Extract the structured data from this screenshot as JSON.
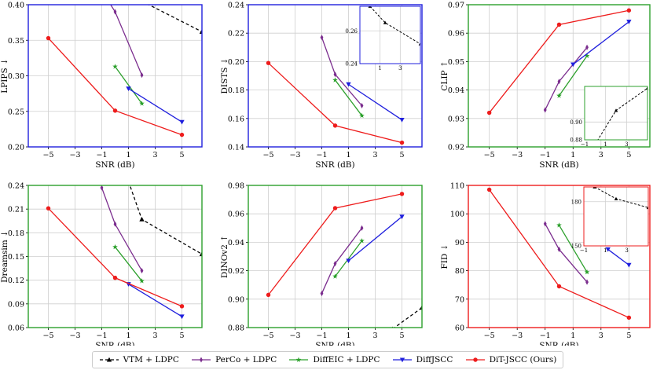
{
  "colors": {
    "VTM + LDPC": "#000000",
    "PerCo + LDPC": "#7b2d8e",
    "DiffEIC + LDPC": "#2ca02c",
    "DiffJSCC": "#1f1fdd",
    "DiT-JSCC (Ours)": "#ee1c1c"
  },
  "legend": [
    {
      "name": "VTM + LDPC",
      "marker": "triangle-up",
      "dashed": true
    },
    {
      "name": "PerCo + LDPC",
      "marker": "diamond",
      "dashed": false
    },
    {
      "name": "DiffEIC + LDPC",
      "marker": "star",
      "dashed": false
    },
    {
      "name": "DiffJSCC",
      "marker": "triangle-down",
      "dashed": false
    },
    {
      "name": "DiT-JSCC (Ours)",
      "marker": "circle",
      "dashed": false
    }
  ],
  "chart_data": [
    {
      "type": "line",
      "id": "lpips",
      "ylabel": "LPIPS ↓",
      "xlabel": "SNR (dB)",
      "frame_color": "#1f1fdd",
      "xlim": [
        -6.5,
        6.5
      ],
      "ylim": [
        0.2,
        0.4
      ],
      "xticks": [
        -5,
        -3,
        -1,
        1,
        3,
        5
      ],
      "xtick_labels": [
        "−5",
        "−3",
        "−1",
        "1",
        "3",
        "5"
      ],
      "yticks": [
        0.2,
        0.25,
        0.3,
        0.35,
        0.4
      ],
      "ytick_labels": [
        "0.20",
        "0.25",
        "0.30",
        "0.35",
        "0.40"
      ],
      "series": [
        {
          "name": "VTM + LDPC",
          "x": [
            2,
            6.5
          ],
          "y": [
            0.405,
            0.362
          ]
        },
        {
          "name": "PerCo + LDPC",
          "x": [
            -1,
            0,
            2
          ],
          "y": [
            0.42,
            0.39,
            0.301
          ]
        },
        {
          "name": "DiffEIC + LDPC",
          "x": [
            0,
            2
          ],
          "y": [
            0.313,
            0.261
          ]
        },
        {
          "name": "DiffJSCC",
          "x": [
            1,
            5
          ],
          "y": [
            0.282,
            0.235
          ]
        },
        {
          "name": "DiT-JSCC (Ours)",
          "x": [
            -5,
            0,
            5
          ],
          "y": [
            0.353,
            0.251,
            0.217
          ]
        }
      ]
    },
    {
      "type": "line",
      "id": "dists",
      "ylabel": "DISTS ↓",
      "xlabel": "SNR (dB)",
      "frame_color": "#1f1fdd",
      "xlim": [
        -6.5,
        6.5
      ],
      "ylim": [
        0.14,
        0.24
      ],
      "xticks": [
        -5,
        -3,
        -1,
        1,
        3,
        5
      ],
      "xtick_labels": [
        "−5",
        "−3",
        "−1",
        "1",
        "3",
        "5"
      ],
      "yticks": [
        0.14,
        0.16,
        0.18,
        0.2,
        0.22,
        0.24
      ],
      "ytick_labels": [
        "0.14",
        "0.16",
        "0.18",
        "0.20",
        "0.22",
        "0.24"
      ],
      "series": [
        {
          "name": "PerCo + LDPC",
          "x": [
            -1,
            0,
            2
          ],
          "y": [
            0.217,
            0.191,
            0.169
          ]
        },
        {
          "name": "DiffEIC + LDPC",
          "x": [
            0,
            2
          ],
          "y": [
            0.187,
            0.162
          ]
        },
        {
          "name": "DiffJSCC",
          "x": [
            1,
            5
          ],
          "y": [
            0.184,
            0.159
          ]
        },
        {
          "name": "DiT-JSCC (Ours)",
          "x": [
            -5,
            0,
            5
          ],
          "y": [
            0.199,
            0.155,
            0.143
          ]
        }
      ],
      "inset": {
        "xlim": [
          -1,
          5
        ],
        "ylim": [
          0.24,
          0.275
        ],
        "xticks": [
          1,
          3
        ],
        "xtick_labels": [
          "1",
          "3"
        ],
        "yticks": [
          0.24,
          0.26
        ],
        "ytick_labels": [
          "0.24",
          "0.26"
        ],
        "series": [
          {
            "name": "VTM + LDPC",
            "x": [
              0,
              1.5,
              5
            ],
            "y": [
              0.275,
              0.265,
              0.252
            ]
          }
        ]
      }
    },
    {
      "type": "line",
      "id": "clip",
      "ylabel": "CLIP ↑",
      "xlabel": "SNR (dB)",
      "frame_color": "#2ca02c",
      "xlim": [
        -6.5,
        6.5
      ],
      "ylim": [
        0.92,
        0.97
      ],
      "xticks": [
        -5,
        -3,
        -1,
        1,
        3,
        5
      ],
      "xtick_labels": [
        "−5",
        "−3",
        "−1",
        "1",
        "3",
        "5"
      ],
      "yticks": [
        0.92,
        0.93,
        0.94,
        0.95,
        0.96,
        0.97
      ],
      "ytick_labels": [
        "0.92",
        "0.93",
        "0.94",
        "0.95",
        "0.96",
        "0.97"
      ],
      "series": [
        {
          "name": "PerCo + LDPC",
          "x": [
            -1,
            0,
            2
          ],
          "y": [
            0.933,
            0.943,
            0.955
          ]
        },
        {
          "name": "DiffEIC + LDPC",
          "x": [
            0,
            2
          ],
          "y": [
            0.938,
            0.952
          ]
        },
        {
          "name": "DiffJSCC",
          "x": [
            1,
            5
          ],
          "y": [
            0.949,
            0.964
          ]
        },
        {
          "name": "DiT-JSCC (Ours)",
          "x": [
            -5,
            0,
            5
          ],
          "y": [
            0.932,
            0.963,
            0.968
          ]
        }
      ],
      "inset": {
        "xlim": [
          -1,
          5
        ],
        "ylim": [
          0.88,
          0.94
        ],
        "xticks": [
          -1,
          1,
          3
        ],
        "xtick_labels": [
          "−1",
          "1",
          "3"
        ],
        "yticks": [
          0.88,
          0.9
        ],
        "ytick_labels": [
          "0.88",
          "0.90"
        ],
        "series": [
          {
            "name": "VTM + LDPC",
            "x": [
              0,
              2,
              5
            ],
            "y": [
              0.875,
              0.913,
              0.938
            ]
          }
        ]
      }
    },
    {
      "type": "line",
      "id": "dreamsim",
      "ylabel": "Dreamsim ↓",
      "xlabel": "SNR (dB)",
      "frame_color": "#2ca02c",
      "xlim": [
        -6.5,
        6.5
      ],
      "ylim": [
        0.06,
        0.24
      ],
      "xticks": [
        -5,
        -3,
        -1,
        1,
        3,
        5
      ],
      "xtick_labels": [
        "−5",
        "−3",
        "−1",
        "1",
        "3",
        "5"
      ],
      "yticks": [
        0.06,
        0.09,
        0.12,
        0.15,
        0.18,
        0.21,
        0.24
      ],
      "ytick_labels": [
        "0.06",
        "0.09",
        "0.12",
        "0.15",
        "0.18",
        "0.21",
        "0.24"
      ],
      "series": [
        {
          "name": "VTM + LDPC",
          "x": [
            1,
            2,
            6.5
          ],
          "y": [
            0.245,
            0.197,
            0.153
          ]
        },
        {
          "name": "PerCo + LDPC",
          "x": [
            -1,
            0,
            2
          ],
          "y": [
            0.237,
            0.191,
            0.132
          ]
        },
        {
          "name": "DiffEIC + LDPC",
          "x": [
            0,
            2
          ],
          "y": [
            0.162,
            0.119
          ]
        },
        {
          "name": "DiffJSCC",
          "x": [
            1,
            5
          ],
          "y": [
            0.115,
            0.074
          ]
        },
        {
          "name": "DiT-JSCC (Ours)",
          "x": [
            -5,
            0,
            5
          ],
          "y": [
            0.211,
            0.123,
            0.087
          ]
        }
      ]
    },
    {
      "type": "line",
      "id": "dinov2",
      "ylabel": "DINOv2 ↑",
      "xlabel": "SNR (dB)",
      "frame_color": "#2ca02c",
      "xlim": [
        -6.5,
        6.5
      ],
      "ylim": [
        0.88,
        0.98
      ],
      "xticks": [
        -5,
        -3,
        -1,
        1,
        3,
        5
      ],
      "xtick_labels": [
        "−5",
        "−3",
        "−1",
        "1",
        "3",
        "5"
      ],
      "yticks": [
        0.88,
        0.9,
        0.92,
        0.94,
        0.96,
        0.98
      ],
      "ytick_labels": [
        "0.88",
        "0.90",
        "0.92",
        "0.94",
        "0.96",
        "0.98"
      ],
      "series": [
        {
          "name": "VTM + LDPC",
          "x": [
            4.3,
            6.5
          ],
          "y": [
            0.879,
            0.894
          ]
        },
        {
          "name": "PerCo + LDPC",
          "x": [
            -1,
            0,
            2
          ],
          "y": [
            0.904,
            0.925,
            0.95
          ]
        },
        {
          "name": "DiffEIC + LDPC",
          "x": [
            0,
            2
          ],
          "y": [
            0.916,
            0.941
          ]
        },
        {
          "name": "DiffJSCC",
          "x": [
            1,
            5
          ],
          "y": [
            0.927,
            0.958
          ]
        },
        {
          "name": "DiT-JSCC (Ours)",
          "x": [
            -5,
            0,
            5
          ],
          "y": [
            0.903,
            0.964,
            0.974
          ]
        }
      ]
    },
    {
      "type": "line",
      "id": "fid",
      "ylabel": "FID ↓",
      "xlabel": "SNR (dB)",
      "frame_color": "#ee1c1c",
      "xlim": [
        -6.5,
        6.5
      ],
      "ylim": [
        60,
        110
      ],
      "xticks": [
        -5,
        -3,
        -1,
        1,
        3,
        5
      ],
      "xtick_labels": [
        "−5",
        "−3",
        "−1",
        "1",
        "3",
        "5"
      ],
      "yticks": [
        60,
        70,
        80,
        90,
        100,
        110
      ],
      "ytick_labels": [
        "60",
        "70",
        "80",
        "90",
        "100",
        "110"
      ],
      "series": [
        {
          "name": "PerCo + LDPC",
          "x": [
            -1,
            0,
            2
          ],
          "y": [
            96.5,
            87.5,
            76
          ]
        },
        {
          "name": "DiffEIC + LDPC",
          "x": [
            0,
            2
          ],
          "y": [
            96,
            79.5
          ]
        },
        {
          "name": "DiffJSCC",
          "x": [
            3.5,
            5
          ],
          "y": [
            87.5,
            82
          ]
        },
        {
          "name": "DiT-JSCC (Ours)",
          "x": [
            -5,
            0,
            5
          ],
          "y": [
            108.5,
            74.5,
            63.5
          ]
        }
      ],
      "inset": {
        "xlim": [
          -1,
          5
        ],
        "ylim": [
          150,
          190
        ],
        "xticks": [
          -1,
          1,
          3
        ],
        "xtick_labels": [
          "−1",
          "1",
          "3"
        ],
        "yticks": [
          150,
          180
        ],
        "ytick_labels": [
          "150",
          "180"
        ],
        "series": [
          {
            "name": "VTM + LDPC",
            "x": [
              0,
              2,
              5
            ],
            "y": [
              190,
              182,
              176
            ]
          }
        ]
      }
    }
  ]
}
